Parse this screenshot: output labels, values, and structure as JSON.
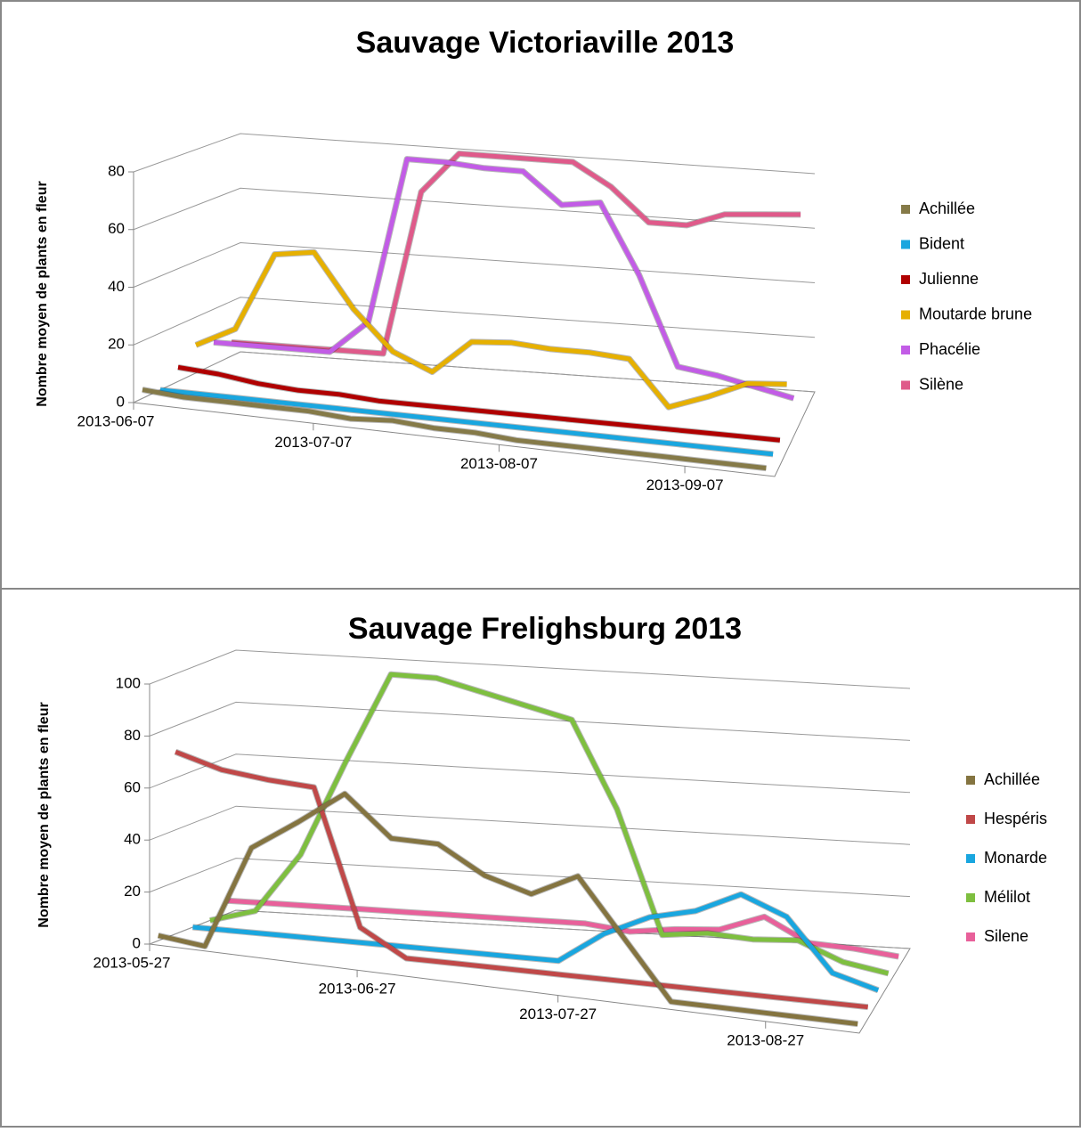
{
  "chart_data": [
    {
      "type": "line3d",
      "title": "Sauvage Victoriaville 2013",
      "y_label": "Nombre moyen de plants en fleur",
      "x": [
        "2013-06-07",
        "2013-06-14",
        "2013-06-21",
        "2013-06-28",
        "2013-07-05",
        "2013-07-12",
        "2013-07-19",
        "2013-07-26",
        "2013-08-02",
        "2013-08-09",
        "2013-08-16",
        "2013-08-23",
        "2013-08-30",
        "2013-09-06",
        "2013-09-13",
        "2013-09-20"
      ],
      "xlim": [
        "2013-06-07",
        "2013-09-22"
      ],
      "xticks": [
        "2013-06-07",
        "2013-07-07",
        "2013-08-07",
        "2013-09-07"
      ],
      "ylim": [
        0,
        80
      ],
      "yticks": [
        0,
        20,
        40,
        60,
        80
      ],
      "grid": true,
      "legend": "right",
      "series": [
        {
          "name": "Achillée",
          "color": "#857a48",
          "values": [
            3,
            2,
            2,
            2,
            2,
            1,
            2,
            1,
            1,
            0,
            0,
            0,
            0,
            0,
            0,
            0
          ]
        },
        {
          "name": "Bident",
          "color": "#19a6df",
          "values": [
            0,
            0,
            0,
            0,
            0,
            0,
            0,
            0,
            0,
            0,
            0,
            0,
            0,
            0,
            0,
            0
          ]
        },
        {
          "name": "Julienne",
          "color": "#b00000",
          "values": [
            5,
            4,
            2,
            1,
            1,
            0,
            0,
            0,
            0,
            0,
            0,
            0,
            0,
            0,
            0,
            0
          ]
        },
        {
          "name": "Moutarde brune",
          "color": "#e6b000",
          "values": [
            10,
            17,
            45,
            47,
            28,
            14,
            8,
            20,
            21,
            20,
            20,
            19,
            3,
            8,
            14,
            15
          ]
        },
        {
          "name": "Phacélie",
          "color": "#c25ce6",
          "values": [
            8,
            8,
            8,
            8,
            20,
            80,
            80,
            79,
            79,
            68,
            70,
            45,
            13,
            11,
            8,
            5
          ]
        },
        {
          "name": "Silène",
          "color": "#df5a8a",
          "values": [
            5,
            5,
            5,
            5,
            5,
            65,
            80,
            80,
            80,
            80,
            72,
            60,
            60,
            65,
            66,
            67
          ]
        }
      ]
    },
    {
      "type": "line3d",
      "title": "Sauvage Frelighsburg  2013",
      "y_label": "Nombre moyen de plants en fleur",
      "x": [
        "2013-05-27",
        "2013-06-03",
        "2013-06-10",
        "2013-06-17",
        "2013-06-24",
        "2013-07-01",
        "2013-07-08",
        "2013-07-15",
        "2013-07-22",
        "2013-07-29",
        "2013-08-05",
        "2013-08-12",
        "2013-08-19",
        "2013-08-26",
        "2013-09-02",
        "2013-09-09"
      ],
      "xlim": [
        "2013-05-27",
        "2013-09-10"
      ],
      "xticks": [
        "2013-05-27",
        "2013-06-27",
        "2013-07-27",
        "2013-08-27"
      ],
      "ylim": [
        0,
        100
      ],
      "yticks": [
        0,
        20,
        40,
        60,
        80,
        100
      ],
      "grid": true,
      "legend": "right",
      "series": [
        {
          "name": "Achillée",
          "color": "#847440",
          "values": [
            2,
            0,
            40,
            52,
            65,
            50,
            50,
            40,
            35,
            44,
            22,
            0,
            0,
            0,
            0,
            0
          ]
        },
        {
          "name": "Hespéris",
          "color": "#c04848",
          "values": [
            70,
            65,
            63,
            62,
            10,
            0,
            0,
            0,
            0,
            0,
            0,
            0,
            0,
            0,
            0,
            0
          ]
        },
        {
          "name": "Monarde",
          "color": "#19a6df",
          "values": [
            0,
            0,
            0,
            0,
            0,
            0,
            0,
            0,
            0,
            12,
            20,
            24,
            32,
            25,
            5,
            0
          ]
        },
        {
          "name": "Mélilot",
          "color": "#7ebf3f",
          "values": [
            0,
            5,
            28,
            65,
            100,
            100,
            96,
            92,
            88,
            55,
            8,
            10,
            9,
            10,
            3,
            0
          ]
        },
        {
          "name": "Silene",
          "color": "#e8609a",
          "values": [
            5,
            5,
            5,
            5,
            5,
            5,
            5,
            5,
            5,
            3,
            5,
            6,
            12,
            3,
            2,
            0
          ]
        }
      ]
    }
  ]
}
